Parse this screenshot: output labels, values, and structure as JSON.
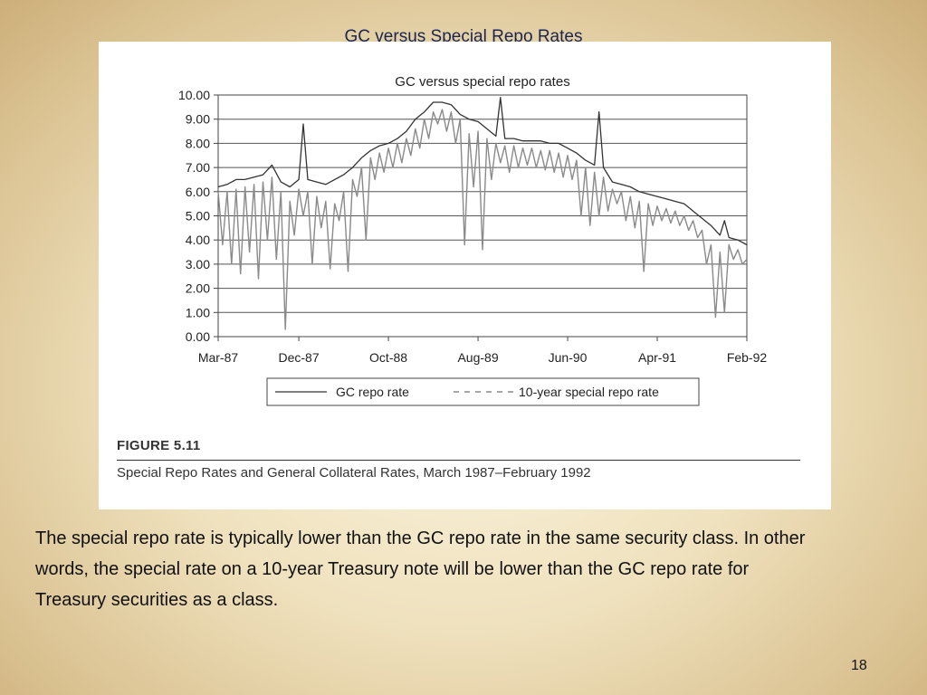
{
  "slide": {
    "title": "GC versus Special Repo Rates",
    "body": "The special repo rate is typically lower than the GC repo rate in the same security class. In other words, the special rate on a 10-year Treasury note will be lower than the GC repo rate for Treasury securities as a class.",
    "page_number": "18"
  },
  "figure": {
    "label": "FIGURE 5.11",
    "caption": "Special Repo Rates and General Collateral Rates, March 1987–February 1992"
  },
  "chart_data": {
    "type": "line",
    "title": "GC versus special repo rates",
    "xlabel": "",
    "ylabel": "",
    "ylim": [
      0,
      10
    ],
    "xlim": [
      0,
      59
    ],
    "y_ticks": [
      "0.00",
      "1.00",
      "2.00",
      "3.00",
      "4.00",
      "5.00",
      "6.00",
      "7.00",
      "8.00",
      "9.00",
      "10.00"
    ],
    "x_ticks": [
      {
        "label": "Mar-87",
        "x": 0
      },
      {
        "label": "Dec-87",
        "x": 9
      },
      {
        "label": "Oct-88",
        "x": 19
      },
      {
        "label": "Aug-89",
        "x": 29
      },
      {
        "label": "Jun-90",
        "x": 39
      },
      {
        "label": "Apr-91",
        "x": 49
      },
      {
        "label": "Feb-92",
        "x": 59
      }
    ],
    "grid": true,
    "legend_position": "bottom",
    "series": [
      {
        "name": "GC repo rate",
        "style": "solid",
        "color": "#333333",
        "points": [
          [
            0,
            6.2
          ],
          [
            1,
            6.3
          ],
          [
            2,
            6.5
          ],
          [
            3,
            6.5
          ],
          [
            4,
            6.6
          ],
          [
            5,
            6.7
          ],
          [
            6,
            7.1
          ],
          [
            7,
            6.4
          ],
          [
            8,
            6.2
          ],
          [
            9,
            6.5
          ],
          [
            9.5,
            8.8
          ],
          [
            10,
            6.5
          ],
          [
            11,
            6.4
          ],
          [
            12,
            6.3
          ],
          [
            13,
            6.5
          ],
          [
            14,
            6.7
          ],
          [
            15,
            7.0
          ],
          [
            16,
            7.4
          ],
          [
            17,
            7.7
          ],
          [
            18,
            7.9
          ],
          [
            19,
            8.0
          ],
          [
            20,
            8.2
          ],
          [
            21,
            8.5
          ],
          [
            22,
            9.0
          ],
          [
            23,
            9.3
          ],
          [
            24,
            9.7
          ],
          [
            25,
            9.7
          ],
          [
            26,
            9.6
          ],
          [
            27,
            9.2
          ],
          [
            28,
            9.0
          ],
          [
            29,
            8.9
          ],
          [
            30,
            8.6
          ],
          [
            31,
            8.3
          ],
          [
            31.5,
            9.9
          ],
          [
            32,
            8.2
          ],
          [
            33,
            8.2
          ],
          [
            34,
            8.1
          ],
          [
            35,
            8.1
          ],
          [
            36,
            8.1
          ],
          [
            37,
            8.0
          ],
          [
            38,
            8.0
          ],
          [
            39,
            7.8
          ],
          [
            40,
            7.6
          ],
          [
            41,
            7.3
          ],
          [
            42,
            7.1
          ],
          [
            42.5,
            9.3
          ],
          [
            43,
            7.0
          ],
          [
            44,
            6.4
          ],
          [
            45,
            6.3
          ],
          [
            46,
            6.2
          ],
          [
            47,
            6.0
          ],
          [
            48,
            5.9
          ],
          [
            49,
            5.8
          ],
          [
            50,
            5.7
          ],
          [
            51,
            5.6
          ],
          [
            52,
            5.5
          ],
          [
            53,
            5.2
          ],
          [
            54,
            4.9
          ],
          [
            55,
            4.6
          ],
          [
            56,
            4.2
          ],
          [
            56.5,
            4.8
          ],
          [
            57,
            4.1
          ],
          [
            58,
            4.0
          ],
          [
            59,
            3.8
          ]
        ]
      },
      {
        "name": "10-year special repo rate",
        "style": "dashed",
        "color": "#8a8a8a",
        "points": [
          [
            0,
            6.0
          ],
          [
            0.5,
            3.8
          ],
          [
            1,
            6.0
          ],
          [
            1.5,
            3.0
          ],
          [
            2,
            6.1
          ],
          [
            2.5,
            2.6
          ],
          [
            3,
            6.2
          ],
          [
            3.5,
            3.5
          ],
          [
            4,
            6.3
          ],
          [
            4.5,
            2.4
          ],
          [
            5,
            6.4
          ],
          [
            5.5,
            4.0
          ],
          [
            6,
            6.6
          ],
          [
            6.5,
            3.2
          ],
          [
            7,
            6.0
          ],
          [
            7.5,
            0.3
          ],
          [
            8,
            5.6
          ],
          [
            8.5,
            4.2
          ],
          [
            9,
            6.1
          ],
          [
            9.5,
            5.0
          ],
          [
            10,
            6.0
          ],
          [
            10.5,
            3.0
          ],
          [
            11,
            5.8
          ],
          [
            11.5,
            4.5
          ],
          [
            12,
            5.6
          ],
          [
            12.5,
            2.8
          ],
          [
            13,
            5.5
          ],
          [
            13.5,
            4.8
          ],
          [
            14,
            6.0
          ],
          [
            14.5,
            2.7
          ],
          [
            15,
            6.5
          ],
          [
            15.5,
            5.8
          ],
          [
            16,
            7.0
          ],
          [
            16.5,
            4.0
          ],
          [
            17,
            7.4
          ],
          [
            17.5,
            6.5
          ],
          [
            18,
            7.6
          ],
          [
            18.5,
            6.8
          ],
          [
            19,
            7.8
          ],
          [
            19.5,
            7.0
          ],
          [
            20,
            8.0
          ],
          [
            20.5,
            7.2
          ],
          [
            21,
            8.2
          ],
          [
            21.5,
            7.5
          ],
          [
            22,
            8.6
          ],
          [
            22.5,
            7.8
          ],
          [
            23,
            9.0
          ],
          [
            23.5,
            8.2
          ],
          [
            24,
            9.3
          ],
          [
            24.5,
            8.8
          ],
          [
            25,
            9.4
          ],
          [
            25.5,
            8.5
          ],
          [
            26,
            9.3
          ],
          [
            26.5,
            8.0
          ],
          [
            27,
            9.0
          ],
          [
            27.5,
            3.8
          ],
          [
            28,
            8.4
          ],
          [
            28.5,
            6.2
          ],
          [
            29,
            8.5
          ],
          [
            29.5,
            3.6
          ],
          [
            30,
            8.2
          ],
          [
            30.5,
            6.5
          ],
          [
            31,
            8.0
          ],
          [
            31.5,
            7.2
          ],
          [
            32,
            7.9
          ],
          [
            32.5,
            6.8
          ],
          [
            33,
            7.9
          ],
          [
            33.5,
            7.0
          ],
          [
            34,
            7.8
          ],
          [
            34.5,
            7.1
          ],
          [
            35,
            7.8
          ],
          [
            35.5,
            7.0
          ],
          [
            36,
            7.7
          ],
          [
            36.5,
            6.9
          ],
          [
            37,
            7.7
          ],
          [
            37.5,
            6.8
          ],
          [
            38,
            7.6
          ],
          [
            38.5,
            6.6
          ],
          [
            39,
            7.5
          ],
          [
            39.5,
            6.5
          ],
          [
            40,
            7.3
          ],
          [
            40.5,
            5.0
          ],
          [
            41,
            7.0
          ],
          [
            41.5,
            4.6
          ],
          [
            42,
            6.8
          ],
          [
            42.5,
            5.0
          ],
          [
            43,
            6.6
          ],
          [
            43.5,
            5.2
          ],
          [
            44,
            6.1
          ],
          [
            44.5,
            5.5
          ],
          [
            45,
            6.0
          ],
          [
            45.5,
            4.8
          ],
          [
            46,
            5.8
          ],
          [
            46.5,
            4.5
          ],
          [
            47,
            5.6
          ],
          [
            47.5,
            2.7
          ],
          [
            48,
            5.5
          ],
          [
            48.5,
            4.6
          ],
          [
            49,
            5.4
          ],
          [
            49.5,
            4.8
          ],
          [
            50,
            5.3
          ],
          [
            50.5,
            4.7
          ],
          [
            51,
            5.2
          ],
          [
            51.5,
            4.6
          ],
          [
            52,
            5.0
          ],
          [
            52.5,
            4.4
          ],
          [
            53,
            4.8
          ],
          [
            53.5,
            4.1
          ],
          [
            54,
            4.4
          ],
          [
            54.5,
            3.0
          ],
          [
            55,
            3.8
          ],
          [
            55.5,
            0.8
          ],
          [
            56,
            3.5
          ],
          [
            56.5,
            1.0
          ],
          [
            57,
            3.8
          ],
          [
            57.5,
            3.2
          ],
          [
            58,
            3.6
          ],
          [
            58.5,
            3.0
          ],
          [
            59,
            3.2
          ]
        ]
      }
    ]
  }
}
